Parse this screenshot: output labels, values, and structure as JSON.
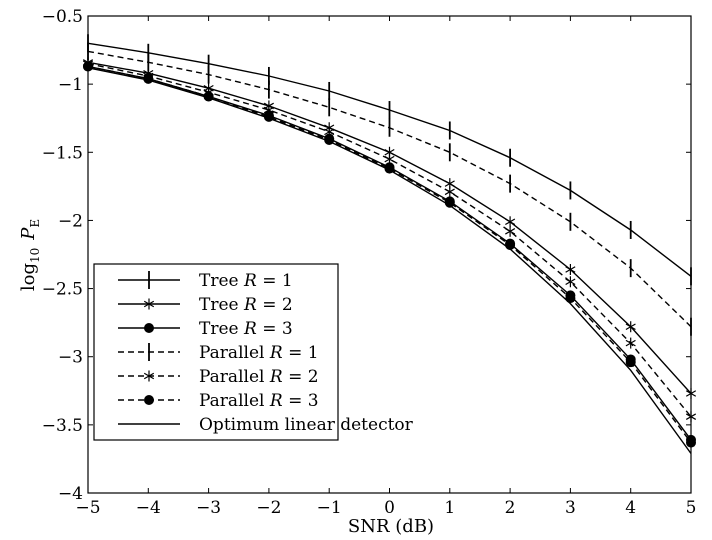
{
  "chart_data": {
    "type": "line",
    "xlabel": "SNR (dB)",
    "ylabel_main": "log",
    "ylabel_sub": "10",
    "ylabel_var": "P",
    "ylabel_var_sub": "E",
    "xlim": [
      -5,
      5
    ],
    "ylim": [
      -4,
      -0.5
    ],
    "x_ticks": [
      -5,
      -4,
      -3,
      -2,
      -1,
      0,
      1,
      2,
      3,
      4,
      5
    ],
    "x_tick_labels": [
      "−5",
      "−4",
      "−3",
      "−2",
      "−1",
      "0",
      "1",
      "2",
      "3",
      "4",
      "5"
    ],
    "y_ticks": [
      -4,
      -3.5,
      -3,
      -2.5,
      -2,
      -1.5,
      -1,
      -0.5
    ],
    "y_tick_labels": [
      "−4",
      "−3.5",
      "−3",
      "−2.5",
      "−2",
      "−1.5",
      "−1",
      "−0.5"
    ],
    "grid": false,
    "legend_position": "bottom-left",
    "x": [
      -5,
      -4,
      -3,
      -2,
      -1,
      0,
      1,
      2,
      3,
      4,
      5
    ],
    "series": [
      {
        "name": "Tree R = 1",
        "label_prefix": "Tree ",
        "label_var": "R",
        "label_value": " = 1",
        "line": "solid",
        "marker": "vbar",
        "values": [
          -0.7,
          -0.77,
          -0.85,
          -0.94,
          -1.05,
          -1.19,
          -1.34,
          -1.54,
          -1.78,
          -2.07,
          -2.41
        ]
      },
      {
        "name": "Tree R = 2",
        "label_prefix": "Tree ",
        "label_var": "R",
        "label_value": " = 2",
        "line": "solid",
        "marker": "star",
        "values": [
          -0.84,
          -0.92,
          -1.03,
          -1.16,
          -1.32,
          -1.5,
          -1.73,
          -2.01,
          -2.36,
          -2.78,
          -3.27
        ]
      },
      {
        "name": "Tree R = 3",
        "label_prefix": "Tree ",
        "label_var": "R",
        "label_value": " = 3",
        "line": "solid",
        "marker": "dot",
        "values": [
          -0.87,
          -0.96,
          -1.09,
          -1.23,
          -1.4,
          -1.61,
          -1.86,
          -2.17,
          -2.55,
          -3.02,
          -3.61
        ]
      },
      {
        "name": "Parallel R = 1",
        "label_prefix": "Parallel ",
        "label_var": "R",
        "label_value": " = 1",
        "line": "dashed",
        "marker": "vbar",
        "values": [
          -0.76,
          -0.84,
          -0.93,
          -1.04,
          -1.17,
          -1.32,
          -1.5,
          -1.73,
          -2.01,
          -2.35,
          -2.78
        ]
      },
      {
        "name": "Parallel R = 2",
        "label_prefix": "Parallel ",
        "label_var": "R",
        "label_value": " = 2",
        "line": "dashed",
        "marker": "star",
        "values": [
          -0.85,
          -0.94,
          -1.06,
          -1.19,
          -1.35,
          -1.55,
          -1.79,
          -2.08,
          -2.45,
          -2.9,
          -3.44
        ]
      },
      {
        "name": "Parallel R = 3",
        "label_prefix": "Parallel ",
        "label_var": "R",
        "label_value": " = 3",
        "line": "dashed",
        "marker": "dot",
        "values": [
          -0.87,
          -0.96,
          -1.09,
          -1.24,
          -1.41,
          -1.62,
          -1.87,
          -2.18,
          -2.57,
          -3.04,
          -3.63
        ]
      },
      {
        "name": "Optimum linear detector",
        "label_prefix": "Optimum linear detector",
        "label_var": "",
        "label_value": "",
        "line": "solid",
        "marker": "none",
        "values": [
          -0.88,
          -0.97,
          -1.1,
          -1.25,
          -1.42,
          -1.63,
          -1.89,
          -2.21,
          -2.61,
          -3.1,
          -3.71
        ]
      }
    ]
  }
}
